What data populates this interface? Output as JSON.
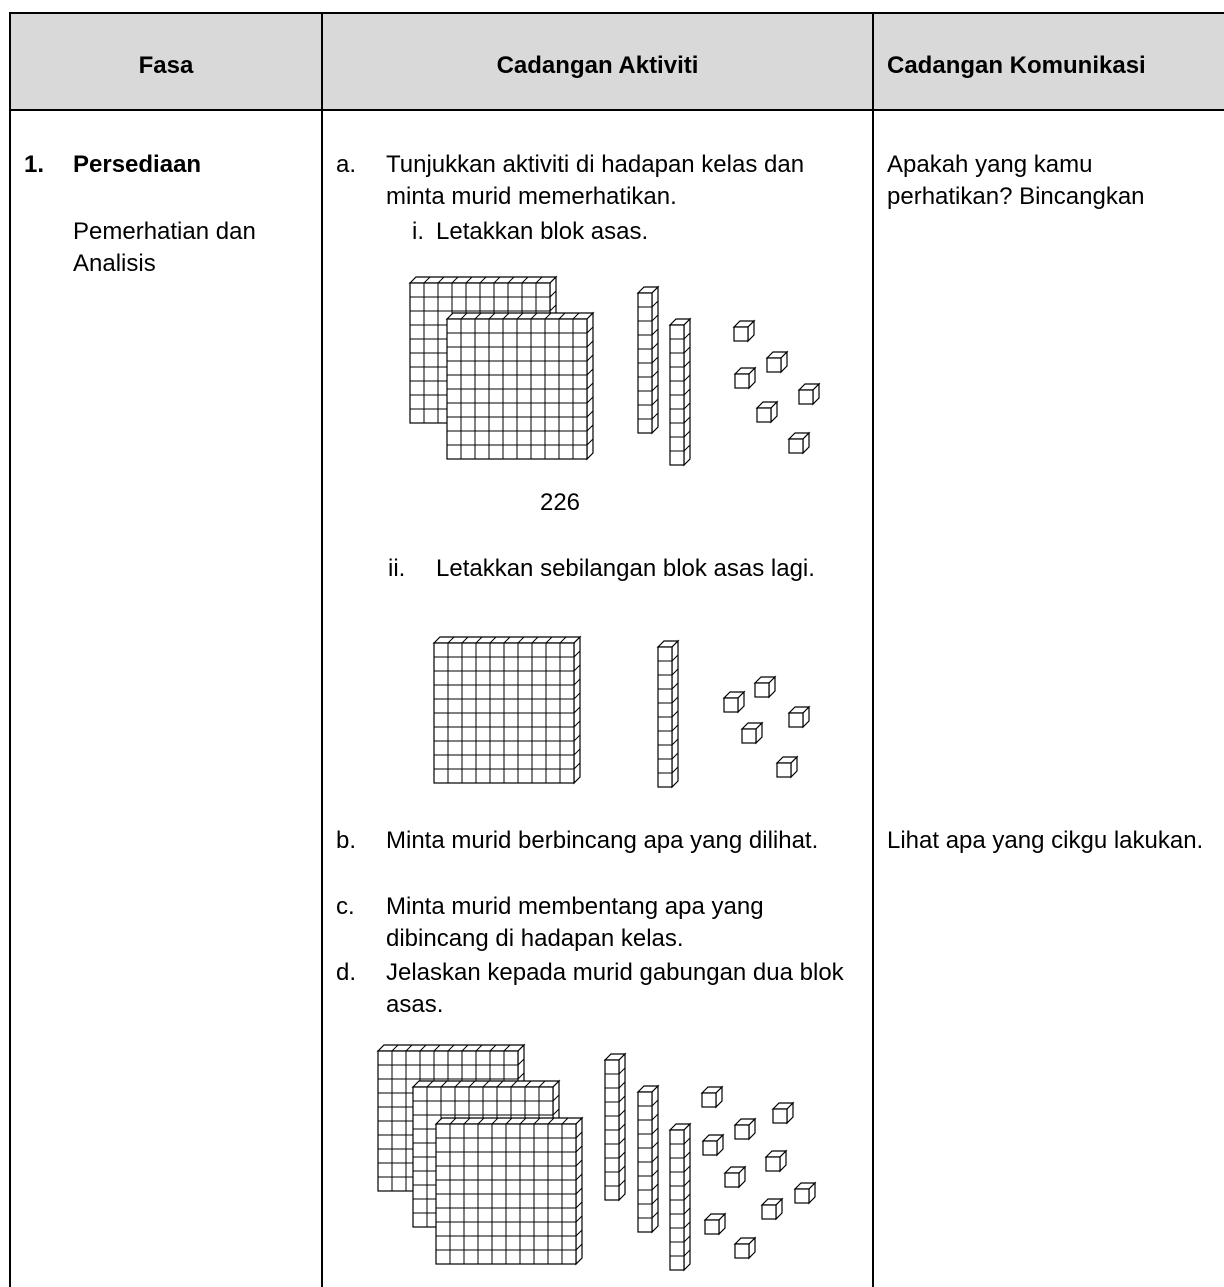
{
  "table": {
    "headers": [
      "Fasa",
      "Cadangan Aktiviti",
      "Cadangan Komunikasi"
    ],
    "rows": [
      {
        "phase": {
          "number": "1.",
          "title": "Persediaan",
          "subtitle": "Pemerhatian dan Analisis"
        },
        "activities": [
          {
            "marker": "a.",
            "text": "Tunjukkan aktiviti di hadapan kelas dan minta murid memerhatikan.",
            "steps": [
              {
                "marker": "i.",
                "text": "Letakkan blok asas.",
                "figure_label": "226"
              },
              {
                "marker": "ii.",
                "text": "Letakkan sebilangan blok asas lagi."
              }
            ]
          },
          {
            "marker": "b.",
            "text": "Minta murid berbincang apa yang dilihat."
          },
          {
            "marker": "c.",
            "text": "Minta murid membentang apa yang dibincang di hadapan kelas."
          },
          {
            "marker": "d.",
            "text": "Jelaskan kepada murid gabungan dua blok asas."
          }
        ],
        "communication": [
          "Apakah yang kamu perhatikan? Bincangkan",
          "Lihat apa yang cikgu lakukan."
        ]
      }
    ]
  }
}
